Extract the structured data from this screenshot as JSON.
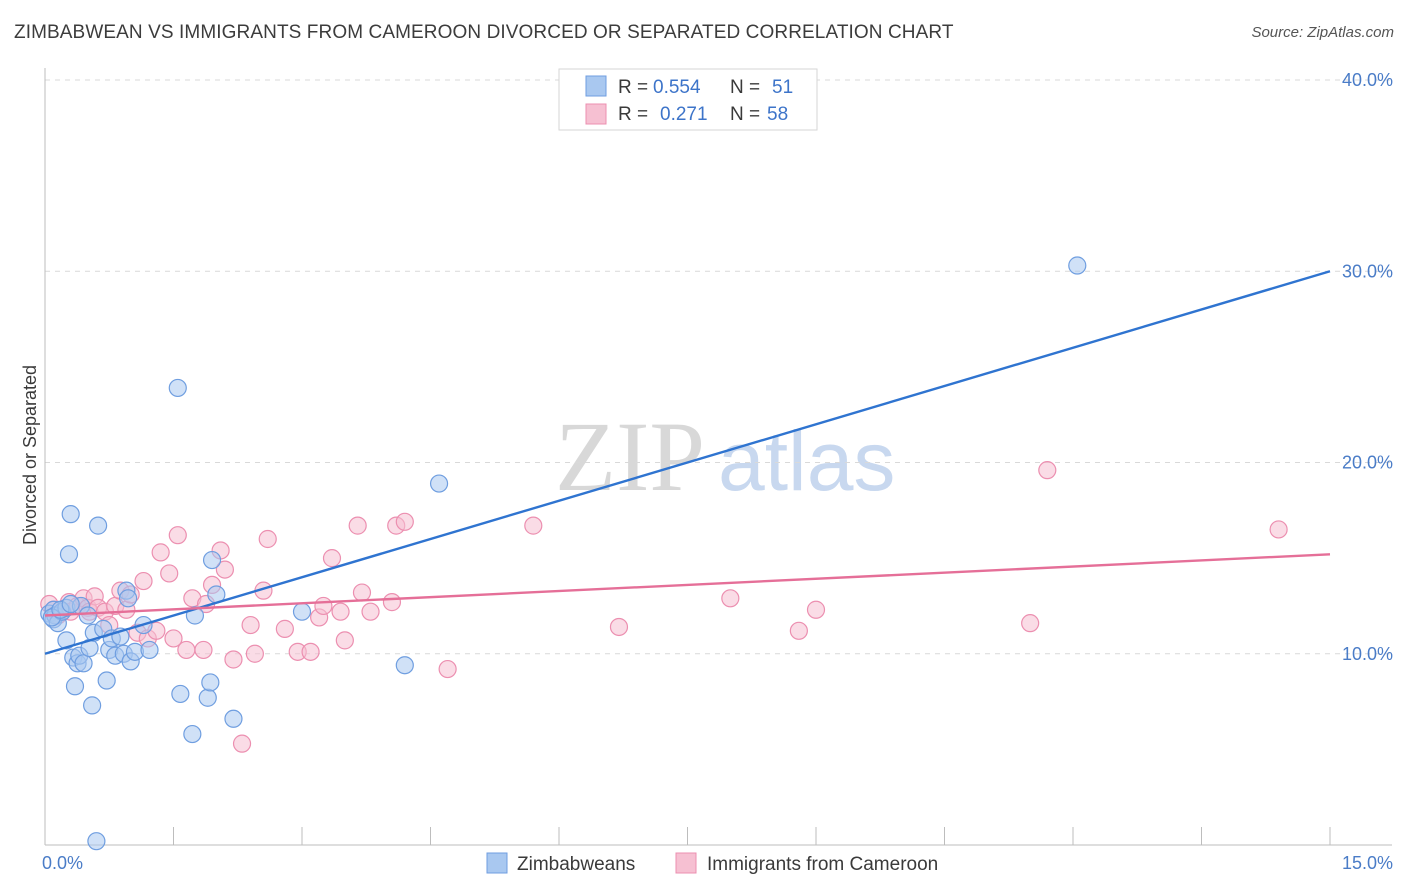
{
  "title": "ZIMBABWEAN VS IMMIGRANTS FROM CAMEROON DIVORCED OR SEPARATED CORRELATION CHART",
  "source": "Source: ZipAtlas.com",
  "watermark": {
    "zip": "ZIP",
    "atlas": "atlas"
  },
  "legend": {
    "rows": [
      {
        "r_label": "R =",
        "r_value": "0.554",
        "n_label": "N =",
        "n_value": "51"
      },
      {
        "r_label": "R =",
        "r_value": "0.271",
        "n_label": "N =",
        "n_value": "58"
      }
    ]
  },
  "bottom_legend": [
    "Zimbabweans",
    "Immigrants from Cameroon"
  ],
  "colors": {
    "blue_fill": "#a9c8f0",
    "blue_stroke": "#6f9ee0",
    "blue_line": "#2f74d0",
    "pink_fill": "#f6c0d2",
    "pink_stroke": "#ec8fb0",
    "pink_line": "#e56f98",
    "tick_text": "#4a7cc7",
    "grid": "#d9d9d9"
  },
  "chart_data": {
    "type": "scatter",
    "title": "ZIMBABWEAN VS IMMIGRANTS FROM CAMEROON DIVORCED OR SEPARATED CORRELATION CHART",
    "xlabel": "",
    "ylabel": "Divorced or Separated",
    "xlim": [
      0,
      15
    ],
    "ylim": [
      0,
      40
    ],
    "x_tick_labels": [
      "0.0%",
      "15.0%"
    ],
    "y_ticks": [
      10,
      20,
      30,
      40
    ],
    "y_tick_labels": [
      "10.0%",
      "20.0%",
      "30.0%",
      "40.0%"
    ],
    "grid": true,
    "series": [
      {
        "name": "Zimbabweans",
        "R": 0.554,
        "N": 51,
        "trend": {
          "x": [
            0,
            15
          ],
          "y": [
            10.0,
            30.0
          ]
        },
        "points": [
          [
            0.05,
            12.1
          ],
          [
            0.1,
            12.3
          ],
          [
            0.1,
            11.8
          ],
          [
            0.12,
            12.0
          ],
          [
            0.15,
            11.6
          ],
          [
            0.2,
            12.2
          ],
          [
            0.25,
            10.7
          ],
          [
            0.25,
            12.4
          ],
          [
            0.28,
            15.2
          ],
          [
            0.3,
            17.3
          ],
          [
            0.33,
            9.8
          ],
          [
            0.35,
            8.3
          ],
          [
            0.38,
            9.5
          ],
          [
            0.4,
            9.9
          ],
          [
            0.42,
            12.5
          ],
          [
            0.45,
            9.5
          ],
          [
            0.5,
            12.0
          ],
          [
            0.52,
            10.3
          ],
          [
            0.55,
            7.3
          ],
          [
            0.57,
            11.1
          ],
          [
            0.62,
            16.7
          ],
          [
            0.68,
            11.3
          ],
          [
            0.72,
            8.6
          ],
          [
            0.75,
            10.2
          ],
          [
            0.78,
            10.8
          ],
          [
            0.82,
            9.9
          ],
          [
            0.88,
            10.9
          ],
          [
            0.92,
            10.0
          ],
          [
            0.95,
            13.3
          ],
          [
            0.97,
            12.9
          ],
          [
            1.0,
            9.6
          ],
          [
            1.05,
            10.1
          ],
          [
            1.15,
            11.5
          ],
          [
            1.22,
            10.2
          ],
          [
            1.55,
            23.9
          ],
          [
            1.58,
            7.9
          ],
          [
            1.72,
            5.8
          ],
          [
            1.75,
            12.0
          ],
          [
            1.9,
            7.7
          ],
          [
            1.93,
            8.5
          ],
          [
            1.95,
            14.9
          ],
          [
            2.0,
            13.1
          ],
          [
            2.2,
            6.6
          ],
          [
            3.0,
            12.2
          ],
          [
            4.2,
            9.4
          ],
          [
            4.6,
            18.9
          ],
          [
            12.05,
            30.3
          ],
          [
            0.08,
            11.9
          ],
          [
            0.18,
            12.3
          ],
          [
            0.6,
            0.2
          ],
          [
            0.3,
            12.6
          ]
        ]
      },
      {
        "name": "Immigrants from Cameroon",
        "R": 0.271,
        "N": 58,
        "trend": {
          "x": [
            0,
            15
          ],
          "y": [
            12.0,
            15.2
          ]
        },
        "points": [
          [
            0.05,
            12.6
          ],
          [
            0.1,
            12.3
          ],
          [
            0.15,
            12.0
          ],
          [
            0.2,
            12.2
          ],
          [
            0.28,
            12.7
          ],
          [
            0.3,
            12.2
          ],
          [
            0.38,
            12.5
          ],
          [
            0.45,
            12.9
          ],
          [
            0.5,
            12.4
          ],
          [
            0.52,
            12.2
          ],
          [
            0.58,
            13.0
          ],
          [
            0.62,
            12.4
          ],
          [
            0.7,
            12.2
          ],
          [
            0.75,
            11.5
          ],
          [
            0.82,
            12.5
          ],
          [
            0.88,
            13.3
          ],
          [
            0.95,
            12.3
          ],
          [
            1.0,
            13.1
          ],
          [
            1.08,
            11.1
          ],
          [
            1.15,
            13.8
          ],
          [
            1.2,
            10.8
          ],
          [
            1.3,
            11.2
          ],
          [
            1.35,
            15.3
          ],
          [
            1.45,
            14.2
          ],
          [
            1.5,
            10.8
          ],
          [
            1.55,
            16.2
          ],
          [
            1.65,
            10.2
          ],
          [
            1.72,
            12.9
          ],
          [
            1.85,
            10.2
          ],
          [
            1.88,
            12.6
          ],
          [
            1.95,
            13.6
          ],
          [
            2.05,
            15.4
          ],
          [
            2.1,
            14.4
          ],
          [
            2.2,
            9.7
          ],
          [
            2.3,
            5.3
          ],
          [
            2.4,
            11.5
          ],
          [
            2.45,
            10.0
          ],
          [
            2.55,
            13.3
          ],
          [
            2.6,
            16.0
          ],
          [
            2.8,
            11.3
          ],
          [
            2.95,
            10.1
          ],
          [
            3.1,
            10.1
          ],
          [
            3.2,
            11.9
          ],
          [
            3.25,
            12.5
          ],
          [
            3.35,
            15.0
          ],
          [
            3.45,
            12.2
          ],
          [
            3.5,
            10.7
          ],
          [
            3.65,
            16.7
          ],
          [
            3.7,
            13.2
          ],
          [
            3.8,
            12.2
          ],
          [
            4.05,
            12.7
          ],
          [
            4.1,
            16.7
          ],
          [
            4.2,
            16.9
          ],
          [
            4.7,
            9.2
          ],
          [
            5.7,
            16.7
          ],
          [
            6.7,
            11.4
          ],
          [
            8.0,
            12.9
          ],
          [
            8.8,
            11.2
          ]
        ],
        "extra_points": [
          [
            9.0,
            12.3
          ],
          [
            11.5,
            11.6
          ],
          [
            11.7,
            19.6
          ],
          [
            14.4,
            16.5
          ]
        ]
      }
    ]
  }
}
